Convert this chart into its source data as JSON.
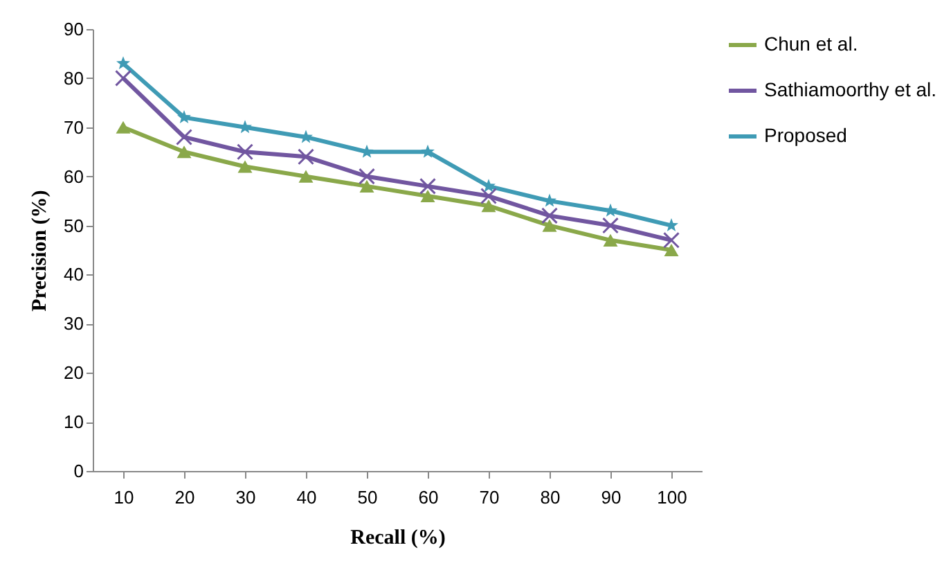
{
  "chart_data": {
    "type": "line",
    "xlabel": "Recall (%)",
    "ylabel": "Precision (%)",
    "categories": [
      "10",
      "20",
      "30",
      "40",
      "50",
      "60",
      "70",
      "80",
      "90",
      "100"
    ],
    "series": [
      {
        "name": "Chun et al.",
        "color": "#8aa84a",
        "marker": "triangle",
        "values": [
          70,
          65,
          62,
          60,
          58,
          56,
          54,
          50,
          47,
          45
        ]
      },
      {
        "name": "Sathiamoorthy et al.",
        "color": "#7156a0",
        "marker": "cross",
        "values": [
          80,
          68,
          65,
          64,
          60,
          58,
          56,
          52,
          50,
          47
        ]
      },
      {
        "name": "Proposed",
        "color": "#3f9bb5",
        "marker": "star",
        "values": [
          83,
          72,
          70,
          68,
          65,
          65,
          58,
          55,
          53,
          50
        ]
      }
    ],
    "ylim": [
      0,
      90
    ],
    "yticks": [
      0,
      10,
      20,
      30,
      40,
      50,
      60,
      70,
      80,
      90
    ],
    "grid": false,
    "legend": "right",
    "line_style": "solid"
  }
}
